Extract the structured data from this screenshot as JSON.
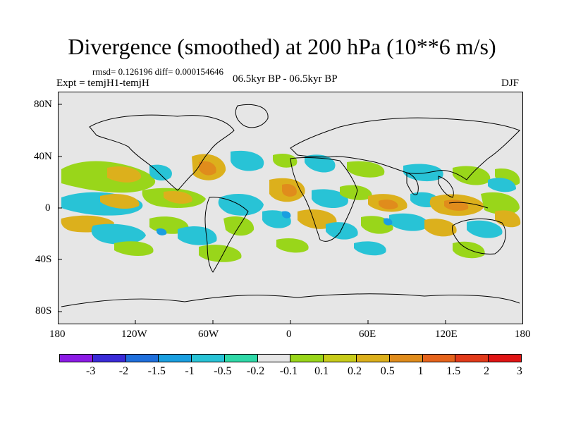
{
  "title": "Divergence (smoothed) at 200 hPa (10**6 m/s)",
  "stats": "rmsd= 0.126196 diff= 0.000154646",
  "experiment": "Expt = temjH1-temjH",
  "period": "06.5kyr BP - 06.5kyr BP",
  "season": "DJF",
  "lat_labels": [
    "80N",
    "40N",
    "0",
    "40S",
    "80S"
  ],
  "lon_labels": [
    "180",
    "120W",
    "60W",
    "0",
    "60E",
    "120E",
    "180"
  ],
  "colorbar": {
    "colors": [
      "#8c1be6",
      "#3a2bd8",
      "#1f6fdc",
      "#1a9fe0",
      "#28c3d6",
      "#2fd9a8",
      "#e6e6e6",
      "#99d61a",
      "#c8cc1a",
      "#dcb01c",
      "#e08c1c",
      "#e6641c",
      "#e23a1a",
      "#e01414"
    ],
    "labels": [
      "-3",
      "-2",
      "-1.5",
      "-1",
      "-0.5",
      "-0.2",
      "-0.1",
      "0.1",
      "0.2",
      "0.5",
      "1",
      "1.5",
      "2",
      "3"
    ]
  }
}
